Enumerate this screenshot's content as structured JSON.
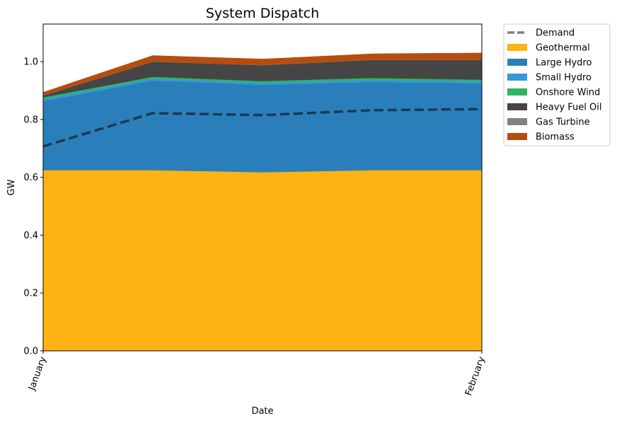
{
  "chart_data": {
    "type": "area",
    "stacked": true,
    "title": "System Dispatch",
    "xlabel": "Date",
    "ylabel": "GW",
    "x": [
      0,
      1,
      2,
      3,
      4
    ],
    "x_ticks": [
      {
        "pos": 0,
        "label": "January"
      },
      {
        "pos": 4,
        "label": "February"
      }
    ],
    "xlim": [
      0,
      4
    ],
    "ylim": [
      0,
      1.13
    ],
    "y_ticks": [
      0.0,
      0.2,
      0.4,
      0.6,
      0.8,
      1.0
    ],
    "grid": false,
    "legend_position": "outside-top-right",
    "series": [
      {
        "name": "Geothermal",
        "color": "#FDB311",
        "values": [
          0.625,
          0.625,
          0.618,
          0.625,
          0.625
        ]
      },
      {
        "name": "Large Hydro",
        "color": "#2A7FBA",
        "values": [
          0.238,
          0.31,
          0.302,
          0.305,
          0.3
        ]
      },
      {
        "name": "Small Hydro",
        "color": "#3498DB",
        "values": [
          0.008,
          0.007,
          0.007,
          0.007,
          0.007
        ]
      },
      {
        "name": "Onshore Wind",
        "color": "#2EB562",
        "values": [
          0.006,
          0.006,
          0.006,
          0.007,
          0.006
        ]
      },
      {
        "name": "Heavy Fuel Oil",
        "color": "#454545",
        "values": [
          0.006,
          0.052,
          0.055,
          0.062,
          0.068
        ]
      },
      {
        "name": "Gas Turbine",
        "color": "#808080",
        "values": [
          0.001,
          0.001,
          0.001,
          0.001,
          0.001
        ]
      },
      {
        "name": "Biomass",
        "color": "#B84C0E",
        "values": [
          0.01,
          0.02,
          0.02,
          0.02,
          0.023
        ]
      }
    ],
    "demand": {
      "name": "Demand",
      "color": "#1A3A52",
      "legend_color": "#808080",
      "dashed": true,
      "values": [
        0.707,
        0.822,
        0.815,
        0.832,
        0.836
      ]
    }
  }
}
